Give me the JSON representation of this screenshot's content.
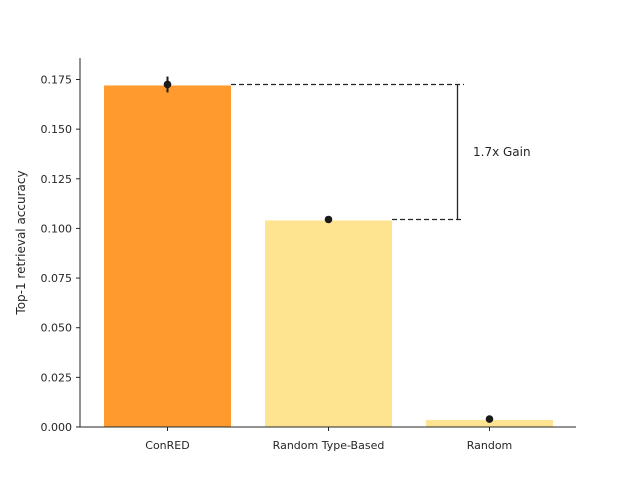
{
  "chart_data": {
    "type": "bar",
    "categories": [
      "ConRED",
      "Random Type-Based",
      "Random"
    ],
    "values": [
      0.172,
      0.104,
      0.0035
    ],
    "point_estimates": [
      0.1725,
      0.1045,
      0.004
    ],
    "error_bars": [
      [
        0.1685,
        0.1765
      ],
      null,
      null
    ],
    "bar_colors": [
      "#ff9a2e",
      "#fee491",
      "#fee491"
    ],
    "point_color": "#1a1a1a",
    "title": "",
    "xlabel": "",
    "ylabel": "Top-1 retrieval accuracy",
    "ylim": [
      0,
      0.185
    ],
    "yticks": [
      0.0,
      0.025,
      0.05,
      0.075,
      0.1,
      0.125,
      0.15,
      0.175
    ],
    "ytick_labels": [
      "0.000",
      "0.025",
      "0.050",
      "0.075",
      "0.100",
      "0.125",
      "0.150",
      "0.175"
    ],
    "grid": false,
    "annotation": {
      "text": "1.7x Gain",
      "from_value": 0.1045,
      "to_value": 0.1725,
      "style": "dashed reference lines with vertical bracket"
    }
  }
}
